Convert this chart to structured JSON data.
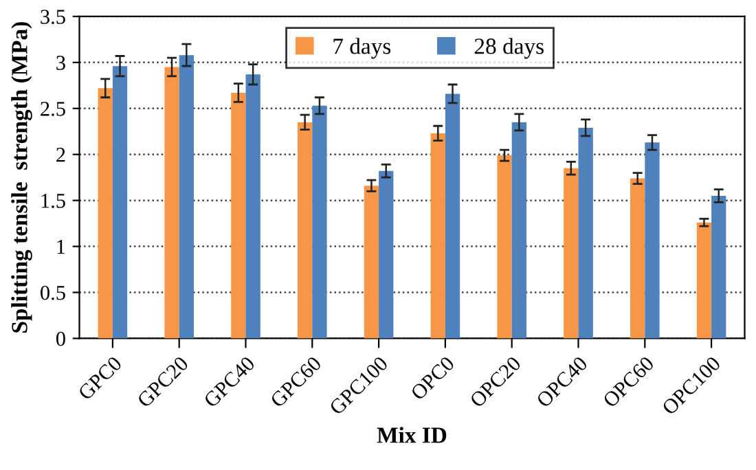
{
  "chart_data": {
    "type": "bar",
    "xlabel": "Mix ID",
    "ylabel": "Splitting tensile  strength (MPa)",
    "categories": [
      "GPC0",
      "GPC20",
      "GPC40",
      "GPC60",
      "GPC100",
      "OPC0",
      "OPC20",
      "OPC40",
      "OPC60",
      "OPC100"
    ],
    "series": [
      {
        "name": "7 days",
        "color": "#f79646",
        "values": [
          2.72,
          2.95,
          2.67,
          2.35,
          1.66,
          2.23,
          1.99,
          1.85,
          1.74,
          1.26
        ],
        "errors": [
          0.1,
          0.1,
          0.1,
          0.08,
          0.06,
          0.08,
          0.06,
          0.07,
          0.06,
          0.04
        ]
      },
      {
        "name": "28 days",
        "color": "#4f81bd",
        "values": [
          2.96,
          3.08,
          2.87,
          2.53,
          1.82,
          2.66,
          2.35,
          2.29,
          2.13,
          1.55
        ],
        "errors": [
          0.11,
          0.12,
          0.11,
          0.09,
          0.07,
          0.1,
          0.09,
          0.09,
          0.08,
          0.07
        ]
      }
    ],
    "ylim": [
      0,
      3.5
    ],
    "yticks": [
      0,
      0.5,
      1,
      1.5,
      2,
      2.5,
      3,
      3.5
    ],
    "grid": "y",
    "legend": "top right"
  }
}
